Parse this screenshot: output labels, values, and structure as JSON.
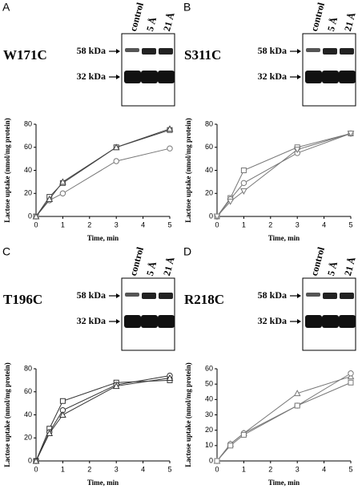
{
  "chart_data": [
    {
      "type": "line",
      "label": "A",
      "title": "W171C",
      "blot": {
        "markers": [
          "58 kDa",
          "32 kDa"
        ],
        "lanes": [
          "control",
          "5 Å",
          "21 Å"
        ]
      },
      "xlabel": "Time, min",
      "ylabel": "Lactose uptake (nmol/mg protein)",
      "x": [
        0,
        0.5,
        1,
        3,
        5
      ],
      "xlim": [
        0,
        5
      ],
      "xticks": [
        0,
        1,
        2,
        3,
        4,
        5
      ],
      "ylim": [
        0,
        80
      ],
      "yticks": [
        0,
        20,
        40,
        60,
        80
      ],
      "series": [
        {
          "color": "#444444",
          "marker": "square",
          "values": [
            0,
            17,
            29,
            60,
            75
          ]
        },
        {
          "color": "#777777",
          "marker": "circle",
          "values": [
            0,
            14,
            20,
            48,
            59
          ]
        },
        {
          "color": "#444444",
          "marker": "triangle",
          "values": [
            0,
            15,
            30,
            60,
            76
          ]
        }
      ]
    },
    {
      "type": "line",
      "label": "B",
      "title": "S311C",
      "blot": {
        "markers": [
          "58 kDa",
          "32 kDa"
        ],
        "lanes": [
          "control",
          "5 Å",
          "21 Å"
        ]
      },
      "xlabel": "Time, min",
      "ylabel": "Lactose uptake (nmol/mg protein)",
      "x": [
        0,
        0.5,
        1,
        3,
        5
      ],
      "xlim": [
        0,
        5
      ],
      "xticks": [
        0,
        1,
        2,
        3,
        4,
        5
      ],
      "ylim": [
        0,
        80
      ],
      "yticks": [
        0,
        20,
        40,
        60,
        80
      ],
      "series": [
        {
          "color": "#777777",
          "marker": "square",
          "values": [
            0,
            16,
            40,
            60,
            72
          ]
        },
        {
          "color": "#777777",
          "marker": "circle",
          "values": [
            0,
            15,
            29,
            55,
            72
          ]
        },
        {
          "color": "#777777",
          "marker": "triangle-down",
          "values": [
            0,
            13,
            22,
            58,
            72
          ]
        }
      ]
    },
    {
      "type": "line",
      "label": "C",
      "title": "T196C",
      "blot": {
        "markers": [
          "58 kDa",
          "32 kDa"
        ],
        "lanes": [
          "control",
          "5 Å",
          "21 Å"
        ]
      },
      "xlabel": "Time, min",
      "ylabel": "Lactose uptake (nmol/mg protein)",
      "x": [
        0,
        0.5,
        1,
        3,
        5
      ],
      "xlim": [
        0,
        5
      ],
      "xticks": [
        0,
        1,
        2,
        3,
        4,
        5
      ],
      "ylim": [
        0,
        80
      ],
      "yticks": [
        0,
        20,
        40,
        60,
        80
      ],
      "series": [
        {
          "color": "#333333",
          "marker": "square",
          "values": [
            0,
            28,
            52,
            68,
            70
          ]
        },
        {
          "color": "#333333",
          "marker": "circle",
          "values": [
            0,
            25,
            44,
            66,
            74
          ]
        },
        {
          "color": "#333333",
          "marker": "triangle",
          "values": [
            0,
            24,
            40,
            65,
            72
          ]
        }
      ]
    },
    {
      "type": "line",
      "label": "D",
      "title": "R218C",
      "blot": {
        "markers": [
          "58 kDa",
          "32 kDa"
        ],
        "lanes": [
          "control",
          "5 Å",
          "21 Å"
        ]
      },
      "xlabel": "Time, min",
      "ylabel": "Lactose uptake (nmol/mg protein)",
      "x": [
        0,
        0.5,
        1,
        3,
        5
      ],
      "xlim": [
        0,
        5
      ],
      "xticks": [
        0,
        1,
        2,
        3,
        4,
        5
      ],
      "ylim": [
        0,
        60
      ],
      "yticks": [
        0,
        10,
        20,
        30,
        40,
        50,
        60
      ],
      "series": [
        {
          "color": "#777777",
          "marker": "triangle",
          "values": [
            0,
            11,
            18,
            44,
            55
          ]
        },
        {
          "color": "#777777",
          "marker": "circle",
          "values": [
            0,
            11,
            18,
            36,
            57
          ]
        },
        {
          "color": "#777777",
          "marker": "square",
          "values": [
            0,
            10,
            17,
            36,
            51
          ]
        }
      ]
    }
  ]
}
